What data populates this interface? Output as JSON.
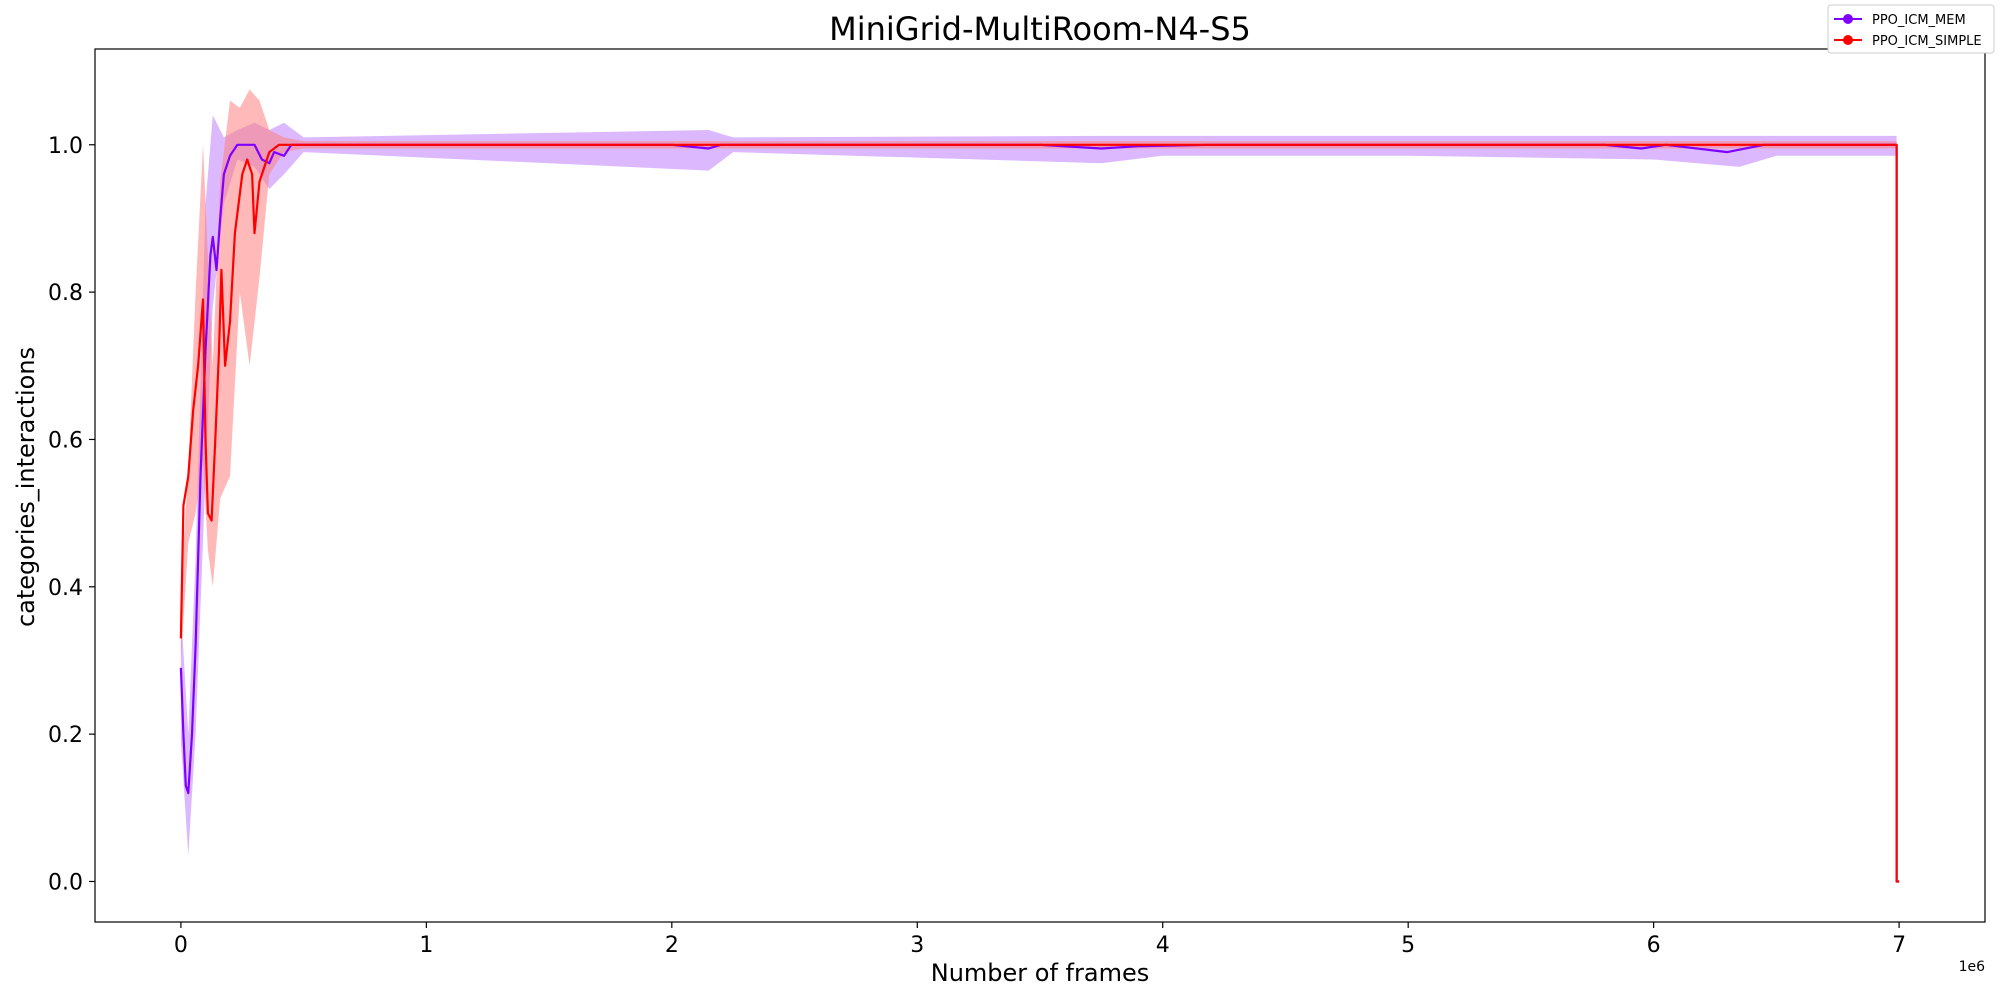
{
  "chart_data": {
    "type": "line",
    "title": "MiniGrid-MultiRoom-N4-S5",
    "xlabel": "Number of frames",
    "ylabel": "categories_interactions",
    "x_offset_label": "1e6",
    "xlim": [
      -350000,
      7350000
    ],
    "ylim": [
      -0.055,
      1.13
    ],
    "xticks": [
      0,
      1,
      2,
      3,
      4,
      5,
      6,
      7
    ],
    "xtick_labels": [
      "0",
      "1",
      "2",
      "3",
      "4",
      "5",
      "6",
      "7"
    ],
    "yticks": [
      0.0,
      0.2,
      0.4,
      0.6,
      0.8,
      1.0
    ],
    "ytick_labels": [
      "0.0",
      "0.2",
      "0.4",
      "0.6",
      "0.8",
      "1.0"
    ],
    "grid": false,
    "legend_position": "top-right",
    "series": [
      {
        "name": "PPO_ICM_MEM",
        "color": "#7f00ff",
        "band_color": "#bf80ff",
        "points": [
          [
            0,
            0.29
          ],
          [
            10000,
            0.2
          ],
          [
            20000,
            0.13
          ],
          [
            30000,
            0.12
          ],
          [
            45000,
            0.2
          ],
          [
            60000,
            0.32
          ],
          [
            80000,
            0.55
          ],
          [
            100000,
            0.72
          ],
          [
            120000,
            0.85
          ],
          [
            130000,
            0.875
          ],
          [
            145000,
            0.83
          ],
          [
            160000,
            0.9
          ],
          [
            175000,
            0.96
          ],
          [
            200000,
            0.985
          ],
          [
            230000,
            1.0
          ],
          [
            300000,
            1.0
          ],
          [
            330000,
            0.98
          ],
          [
            360000,
            0.975
          ],
          [
            380000,
            0.99
          ],
          [
            420000,
            0.985
          ],
          [
            450000,
            1.0
          ],
          [
            500000,
            1.0
          ],
          [
            1000000,
            1.0
          ],
          [
            2000000,
            1.0
          ],
          [
            2150000,
            0.995
          ],
          [
            2200000,
            1.0
          ],
          [
            3500000,
            1.0
          ],
          [
            3750000,
            0.995
          ],
          [
            3900000,
            0.998
          ],
          [
            4200000,
            1.0
          ],
          [
            5800000,
            1.0
          ],
          [
            5950000,
            0.995
          ],
          [
            6050000,
            1.0
          ],
          [
            6300000,
            0.99
          ],
          [
            6450000,
            1.0
          ],
          [
            6990000,
            1.0
          ],
          [
            6990000,
            0.0
          ],
          [
            7000000,
            0.0
          ]
        ],
        "band": [
          [
            0,
            0.19,
            0.37
          ],
          [
            30000,
            0.035,
            0.2
          ],
          [
            60000,
            0.2,
            0.44
          ],
          [
            100000,
            0.55,
            0.92
          ],
          [
            130000,
            0.78,
            1.04
          ],
          [
            175000,
            0.92,
            1.01
          ],
          [
            230000,
            0.98,
            1.02
          ],
          [
            300000,
            0.97,
            1.03
          ],
          [
            360000,
            0.94,
            1.02
          ],
          [
            420000,
            0.96,
            1.03
          ],
          [
            500000,
            0.99,
            1.01
          ],
          [
            2150000,
            0.965,
            1.02
          ],
          [
            2250000,
            0.99,
            1.01
          ],
          [
            3750000,
            0.975,
            1.012
          ],
          [
            4000000,
            0.985,
            1.012
          ],
          [
            5000000,
            0.985,
            1.012
          ],
          [
            6000000,
            0.98,
            1.012
          ],
          [
            6350000,
            0.97,
            1.012
          ],
          [
            6500000,
            0.985,
            1.012
          ],
          [
            6990000,
            0.985,
            1.012
          ]
        ]
      },
      {
        "name": "PPO_ICM_SIMPLE",
        "color": "#ff0000",
        "band_color": "#ff8080",
        "points": [
          [
            0,
            0.33
          ],
          [
            10000,
            0.51
          ],
          [
            30000,
            0.55
          ],
          [
            50000,
            0.64
          ],
          [
            70000,
            0.7
          ],
          [
            90000,
            0.79
          ],
          [
            100000,
            0.6
          ],
          [
            110000,
            0.5
          ],
          [
            125000,
            0.49
          ],
          [
            140000,
            0.6
          ],
          [
            155000,
            0.72
          ],
          [
            165000,
            0.83
          ],
          [
            180000,
            0.7
          ],
          [
            200000,
            0.76
          ],
          [
            220000,
            0.88
          ],
          [
            250000,
            0.96
          ],
          [
            270000,
            0.98
          ],
          [
            290000,
            0.96
          ],
          [
            300000,
            0.88
          ],
          [
            320000,
            0.95
          ],
          [
            340000,
            0.97
          ],
          [
            360000,
            0.99
          ],
          [
            400000,
            1.0
          ],
          [
            500000,
            1.0
          ],
          [
            1000000,
            1.0
          ],
          [
            2000000,
            1.0
          ],
          [
            3000000,
            1.0
          ],
          [
            4000000,
            1.0
          ],
          [
            5000000,
            1.0
          ],
          [
            6000000,
            1.0
          ],
          [
            6990000,
            1.0
          ],
          [
            6990000,
            0.0
          ],
          [
            7000000,
            0.0
          ]
        ],
        "band": [
          [
            0,
            0.3,
            0.4
          ],
          [
            30000,
            0.46,
            0.56
          ],
          [
            60000,
            0.5,
            0.8
          ],
          [
            90000,
            0.57,
            1.0
          ],
          [
            110000,
            0.45,
            0.85
          ],
          [
            130000,
            0.4,
            0.7
          ],
          [
            160000,
            0.52,
            0.95
          ],
          [
            200000,
            0.55,
            1.06
          ],
          [
            240000,
            0.8,
            1.05
          ],
          [
            280000,
            0.7,
            1.075
          ],
          [
            320000,
            0.82,
            1.06
          ],
          [
            360000,
            0.96,
            1.02
          ],
          [
            420000,
            0.99,
            1.01
          ],
          [
            500000,
            0.995,
            1.005
          ],
          [
            6990000,
            0.995,
            1.005
          ]
        ]
      }
    ]
  }
}
